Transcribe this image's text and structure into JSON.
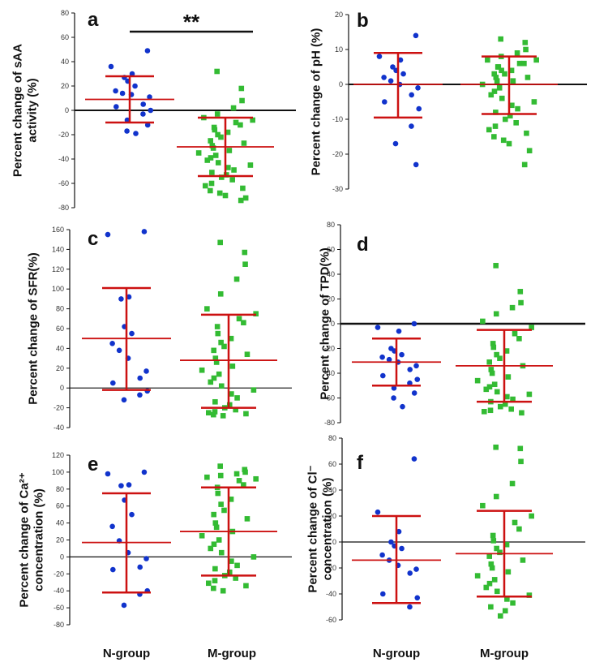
{
  "colors": {
    "n_group": "#1133cc",
    "m_group": "#33bb33",
    "errorbar": "#cc1111",
    "axis": "#111111"
  },
  "categories": [
    "N-group",
    "M-group"
  ],
  "chart_data": [
    {
      "id": "a",
      "type": "scatter",
      "panel_label": "a",
      "ylabel": [
        "Percent change of sAA",
        "activity (%)"
      ],
      "ylim": [
        -80,
        80
      ],
      "yticks": [
        -80,
        -60,
        -40,
        -20,
        0,
        20,
        40,
        60,
        80
      ],
      "significance": {
        "text": "**",
        "between": [
          "N-group",
          "M-group"
        ]
      },
      "series": [
        {
          "name": "N-group",
          "mean": 9,
          "sd_low": -10,
          "sd_high": 28,
          "values": [
            49,
            36,
            30,
            27,
            24,
            20,
            16,
            14,
            13,
            11,
            5,
            3,
            0,
            -3,
            -8,
            -12,
            -17,
            -19
          ]
        },
        {
          "name": "M-group",
          "mean": -30,
          "sd_low": -54,
          "sd_high": -6,
          "values": [
            32,
            18,
            8,
            2,
            -3,
            -6,
            -8,
            -10,
            -12,
            -14,
            -16,
            -18,
            -20,
            -22,
            -25,
            -27,
            -29,
            -31,
            -33,
            -35,
            -37,
            -39,
            -41,
            -43,
            -45,
            -47,
            -49,
            -51,
            -53,
            -55,
            -57,
            -60,
            -62,
            -64,
            -66,
            -68,
            -70,
            -72,
            -74
          ]
        }
      ]
    },
    {
      "id": "b",
      "type": "scatter",
      "panel_label": "b",
      "ylabel": [
        "Percent change of pH (%)"
      ],
      "ylim": [
        -30,
        20
      ],
      "yticks": [
        -30,
        -20,
        -10,
        0,
        10,
        20
      ],
      "series": [
        {
          "name": "N-group",
          "mean": 0,
          "sd_low": -9.5,
          "sd_high": 9,
          "values": [
            14,
            8,
            7,
            5,
            4,
            3,
            2,
            1,
            0,
            -1,
            -3,
            -5,
            -7,
            -12,
            -17,
            -23
          ]
        },
        {
          "name": "M-group",
          "mean": 0,
          "sd_low": -8.5,
          "sd_high": 8,
          "values": [
            13,
            12,
            10,
            9,
            8,
            7,
            7,
            6,
            6,
            5,
            5,
            4,
            4,
            3,
            3,
            2,
            2,
            1,
            1,
            0,
            -1,
            -2,
            -3,
            -4,
            -5,
            -6,
            -7,
            -8,
            -9,
            -10,
            -11,
            -12,
            -13,
            -14,
            -15,
            -16,
            -17,
            -19,
            -23
          ]
        }
      ]
    },
    {
      "id": "c",
      "type": "scatter",
      "panel_label": "c",
      "ylabel": [
        "Percent change of SFR(%)"
      ],
      "ylim": [
        -40,
        160
      ],
      "yticks": [
        -40,
        -20,
        0,
        20,
        40,
        60,
        80,
        100,
        120,
        140,
        160
      ],
      "series": [
        {
          "name": "N-group",
          "mean": 50,
          "sd_low": -2,
          "sd_high": 101,
          "values": [
            158,
            155,
            92,
            90,
            62,
            55,
            45,
            38,
            30,
            17,
            10,
            5,
            -3,
            -7,
            -12
          ]
        },
        {
          "name": "M-group",
          "mean": 28,
          "sd_low": -20,
          "sd_high": 74,
          "values": [
            147,
            137,
            125,
            110,
            95,
            80,
            75,
            70,
            66,
            62,
            55,
            50,
            46,
            42,
            38,
            34,
            30,
            26,
            22,
            18,
            14,
            10,
            6,
            2,
            -2,
            -6,
            -10,
            -14,
            -17,
            -20,
            -22,
            -24,
            -25,
            -26,
            -27,
            -28
          ]
        }
      ]
    },
    {
      "id": "d",
      "type": "scatter",
      "panel_label": "d",
      "ylabel": [
        "Percent change of TPD(%)"
      ],
      "ylim": [
        -80,
        80
      ],
      "yticks": [
        -80,
        -60,
        -40,
        -20,
        0,
        20,
        40,
        60,
        80
      ],
      "series": [
        {
          "name": "N-group",
          "mean": -31,
          "sd_low": -50,
          "sd_high": -12,
          "values": [
            0,
            -3,
            -6,
            -20,
            -22,
            -25,
            -27,
            -29,
            -31,
            -34,
            -37,
            -42,
            -45,
            -48,
            -52,
            -56,
            -60,
            -67
          ]
        },
        {
          "name": "M-group",
          "mean": -34,
          "sd_low": -63,
          "sd_high": -5,
          "values": [
            47,
            26,
            17,
            13,
            8,
            2,
            -3,
            -8,
            -12,
            -16,
            -19,
            -22,
            -25,
            -28,
            -31,
            -34,
            -37,
            -40,
            -43,
            -46,
            -49,
            -51,
            -53,
            -55,
            -57,
            -59,
            -61,
            -63,
            -65,
            -67,
            -69,
            -70,
            -71,
            -72
          ]
        }
      ]
    },
    {
      "id": "e",
      "type": "scatter",
      "panel_label": "e",
      "ylabel": [
        "Percent change of Ca²⁺",
        "concentration (%)"
      ],
      "ylim": [
        -80,
        120
      ],
      "yticks": [
        -80,
        -60,
        -40,
        -20,
        0,
        20,
        40,
        60,
        80,
        100,
        120
      ],
      "series": [
        {
          "name": "N-group",
          "mean": 17,
          "sd_low": -42,
          "sd_high": 75,
          "values": [
            100,
            98,
            85,
            84,
            67,
            50,
            36,
            19,
            5,
            -2,
            -12,
            -15,
            -40,
            -44,
            -57
          ]
        },
        {
          "name": "M-group",
          "mean": 30,
          "sd_low": -22,
          "sd_high": 82,
          "values": [
            107,
            103,
            100,
            98,
            96,
            94,
            92,
            90,
            85,
            82,
            75,
            68,
            62,
            55,
            50,
            45,
            40,
            35,
            30,
            25,
            20,
            15,
            10,
            5,
            0,
            -5,
            -10,
            -14,
            -18,
            -22,
            -25,
            -28,
            -31,
            -34,
            -37,
            -40
          ]
        }
      ]
    },
    {
      "id": "f",
      "type": "scatter",
      "panel_label": "f",
      "ylabel": [
        "Percent change of Cl⁻",
        "concentration (%)"
      ],
      "ylim": [
        -60,
        80
      ],
      "yticks": [
        -60,
        -40,
        -20,
        0,
        20,
        40,
        60,
        80
      ],
      "series": [
        {
          "name": "N-group",
          "mean": -14,
          "sd_low": -47,
          "sd_high": 20,
          "values": [
            64,
            23,
            8,
            0,
            -3,
            -5,
            -10,
            -14,
            -18,
            -21,
            -24,
            -40,
            -43,
            -50
          ]
        },
        {
          "name": "M-group",
          "mean": -9,
          "sd_low": -42,
          "sd_high": 24,
          "values": [
            73,
            72,
            62,
            45,
            35,
            28,
            20,
            15,
            10,
            5,
            1,
            -2,
            -5,
            -8,
            -11,
            -14,
            -17,
            -20,
            -23,
            -26,
            -29,
            -32,
            -35,
            -38,
            -41,
            -44,
            -47,
            -50,
            -53,
            -57
          ]
        }
      ]
    }
  ]
}
